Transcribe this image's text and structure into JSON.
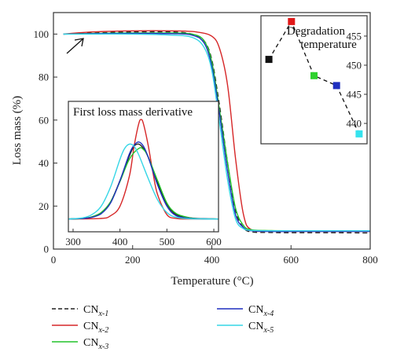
{
  "chart_data": [
    {
      "type": "line",
      "xlabel": "Temperature (°C)",
      "ylabel": "Loss mass (%)",
      "xlim": [
        0,
        800
      ],
      "ylim": [
        0,
        110
      ],
      "x_ticks": [
        "0",
        "200",
        "400",
        "600",
        "800"
      ],
      "y_ticks": [
        "0",
        "20",
        "40",
        "60",
        "80",
        "100"
      ],
      "legend_placement": "below-plot",
      "series": [
        {
          "name": "CNx-1",
          "name_base": "CN",
          "name_sub": "x-1",
          "color": "#222222",
          "dash": true,
          "x": [
            25,
            100,
            200,
            300,
            350,
            380,
            400,
            420,
            440,
            460,
            480,
            500,
            550,
            600,
            700,
            800
          ],
          "y": [
            100,
            100.5,
            101,
            101,
            100,
            97,
            88,
            66,
            40,
            18,
            10,
            8,
            7.7,
            7.6,
            7.6,
            7.5
          ]
        },
        {
          "name": "CNx-2",
          "name_base": "CN",
          "name_sub": "x-2",
          "color": "#d62728",
          "dash": false,
          "x": [
            25,
            100,
            200,
            300,
            360,
            400,
            420,
            440,
            460,
            480,
            500,
            550,
            600,
            700,
            800
          ],
          "y": [
            100,
            101,
            101.5,
            101.5,
            101,
            99,
            93,
            76,
            42,
            16,
            9,
            8.3,
            8.2,
            8.2,
            8.2
          ]
        },
        {
          "name": "CNx-3",
          "name_base": "CN",
          "name_sub": "x-3",
          "color": "#22c42a",
          "dash": false,
          "x": [
            25,
            100,
            200,
            300,
            350,
            380,
            400,
            420,
            440,
            460,
            480,
            500,
            550,
            600,
            700,
            800
          ],
          "y": [
            100,
            100.3,
            100.5,
            100.5,
            100,
            97,
            87,
            64,
            40,
            19,
            11,
            9,
            8.6,
            8.5,
            8.5,
            8.5
          ]
        },
        {
          "name": "CNx-4",
          "name_base": "CN",
          "name_sub": "x-4",
          "color": "#1f2fbf",
          "dash": false,
          "x": [
            25,
            100,
            200,
            300,
            350,
            380,
            400,
            420,
            440,
            460,
            480,
            500,
            550,
            600,
            700,
            800
          ],
          "y": [
            100,
            100.2,
            100.3,
            100.2,
            99.5,
            96,
            85,
            62,
            36,
            16,
            10,
            8.5,
            8.2,
            8.2,
            8.2,
            8.2
          ]
        },
        {
          "name": "CNx-5",
          "name_base": "CN",
          "name_sub": "x-5",
          "color": "#35d6e6",
          "dash": false,
          "x": [
            25,
            100,
            200,
            300,
            350,
            380,
            400,
            420,
            440,
            460,
            480,
            500,
            550,
            600,
            700,
            800
          ],
          "y": [
            100,
            100,
            100,
            99.5,
            98.5,
            94,
            83,
            58,
            32,
            14,
            9.5,
            8.7,
            8.5,
            8.5,
            8.5,
            8.5
          ]
        }
      ]
    },
    {
      "type": "line",
      "title": "First loss mass derivative",
      "xlim": [
        290,
        610
      ],
      "ylim": [
        -1.2,
        11
      ],
      "x_ticks": [
        "300",
        "400",
        "500",
        "600"
      ],
      "series": [
        {
          "name": "CNx-1",
          "color": "#222222",
          "x": [
            290,
            320,
            340,
            360,
            380,
            400,
            420,
            430,
            440,
            450,
            460,
            480,
            500,
            520,
            550,
            580,
            610
          ],
          "y": [
            0,
            0.05,
            0.2,
            0.6,
            1.6,
            3.6,
            5.9,
            6.8,
            7.0,
            6.6,
            5.8,
            3.4,
            1.4,
            0.4,
            0.1,
            0.02,
            0
          ]
        },
        {
          "name": "CNx-2",
          "color": "#d62728",
          "x": [
            290,
            360,
            380,
            400,
            420,
            430,
            440,
            445,
            450,
            460,
            470,
            480,
            500,
            520,
            550,
            610
          ],
          "y": [
            0,
            0.05,
            0.3,
            1.2,
            4.0,
            6.8,
            8.9,
            9.3,
            8.9,
            6.9,
            4.4,
            2.3,
            0.4,
            0.05,
            0,
            0
          ]
        },
        {
          "name": "CNx-3",
          "color": "#22c42a",
          "x": [
            290,
            320,
            340,
            360,
            380,
            400,
            420,
            440,
            450,
            460,
            480,
            500,
            520,
            550,
            580,
            610
          ],
          "y": [
            0,
            0.05,
            0.2,
            0.6,
            1.6,
            3.5,
            5.6,
            6.6,
            6.5,
            5.8,
            3.6,
            1.5,
            0.5,
            0.1,
            0.02,
            0
          ]
        },
        {
          "name": "CNx-4",
          "color": "#1f2fbf",
          "x": [
            290,
            320,
            340,
            360,
            380,
            400,
            420,
            430,
            440,
            450,
            460,
            480,
            500,
            520,
            550,
            580,
            610
          ],
          "y": [
            0,
            0.05,
            0.15,
            0.5,
            1.5,
            3.6,
            6.1,
            6.9,
            7.2,
            6.8,
            5.8,
            3.2,
            1.2,
            0.3,
            0.05,
            0.01,
            0
          ]
        },
        {
          "name": "CNx-5",
          "color": "#35d6e6",
          "x": [
            290,
            320,
            340,
            360,
            380,
            400,
            410,
            420,
            430,
            440,
            460,
            480,
            500,
            520,
            550,
            610
          ],
          "y": [
            0,
            0.1,
            0.4,
            1.2,
            3.0,
            5.6,
            6.6,
            7.0,
            6.8,
            6.0,
            3.8,
            1.8,
            0.6,
            0.15,
            0.02,
            0
          ]
        }
      ]
    },
    {
      "type": "scatter",
      "title": "Degradation temperature",
      "y_ticks": [
        "440",
        "445",
        "450",
        "455"
      ],
      "ylim": [
        436.5,
        458.5
      ],
      "x": [
        1,
        2,
        3,
        4,
        5
      ],
      "y": [
        451,
        457.5,
        448.2,
        446.5,
        438.2
      ],
      "colors": [
        "#111111",
        "#e01818",
        "#2fd12f",
        "#1f2fbf",
        "#35e3ee"
      ]
    }
  ]
}
